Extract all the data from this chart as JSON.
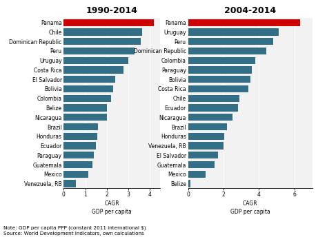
{
  "chart1_title": "1990-2014",
  "chart2_title": "2004-2014",
  "chart1_countries": [
    "Panama",
    "Chile",
    "Dominican Republic",
    "Peru",
    "Uruguay",
    "Costa Rica",
    "El Salvador",
    "Bolivia",
    "Colombia",
    "Belize",
    "Nicaragua",
    "Brazil",
    "Honduras",
    "Ecuador",
    "Paraguay",
    "Guatemala",
    "Mexico",
    "Venezuela, RB"
  ],
  "chart1_values": [
    4.2,
    3.65,
    3.6,
    3.3,
    3.0,
    2.8,
    2.4,
    2.3,
    2.2,
    2.0,
    2.0,
    1.6,
    1.55,
    1.5,
    1.4,
    1.35,
    1.15,
    0.55
  ],
  "chart1_colors": [
    "#cc0000",
    "#336e87",
    "#336e87",
    "#336e87",
    "#336e87",
    "#336e87",
    "#336e87",
    "#336e87",
    "#336e87",
    "#336e87",
    "#336e87",
    "#336e87",
    "#336e87",
    "#336e87",
    "#336e87",
    "#336e87",
    "#336e87",
    "#336e87"
  ],
  "chart2_countries": [
    "Panama",
    "Uruguay",
    "Peru",
    "Dominican Republic",
    "Colombia",
    "Paraguay",
    "Bolivia",
    "Costa Rica",
    "Chile",
    "Ecuador",
    "Nicaragua",
    "Brazil",
    "Honduras",
    "Venezuela, RB",
    "El Salvador",
    "Guatemala",
    "Mexico",
    "Belize"
  ],
  "chart2_values": [
    6.3,
    5.1,
    4.8,
    4.4,
    3.8,
    3.6,
    3.5,
    3.4,
    2.9,
    2.8,
    2.5,
    2.2,
    2.05,
    2.0,
    1.7,
    1.5,
    1.0,
    0.15
  ],
  "chart2_colors": [
    "#cc0000",
    "#336e87",
    "#336e87",
    "#336e87",
    "#336e87",
    "#336e87",
    "#336e87",
    "#336e87",
    "#336e87",
    "#336e87",
    "#336e87",
    "#336e87",
    "#336e87",
    "#336e87",
    "#336e87",
    "#336e87",
    "#336e87",
    "#336e87"
  ],
  "xlabel_line1": "CAGR",
  "xlabel_line2": "GDP per capita",
  "chart1_xlim": [
    0,
    4.5
  ],
  "chart2_xlim": [
    0,
    7.0
  ],
  "chart1_xticks": [
    0,
    1,
    2,
    3,
    4
  ],
  "chart2_xticks": [
    0,
    2,
    4,
    6
  ],
  "note": "Note: GDP per capita PPP (constant 2011 international $)\nSource: World Development Indicators, own calculations",
  "bg_color": "#ffffff",
  "bar_color": "#336e87",
  "highlight_color": "#cc0000",
  "title_fontsize": 9,
  "label_fontsize": 5.5,
  "tick_fontsize": 5.5,
  "note_fontsize": 5.2
}
